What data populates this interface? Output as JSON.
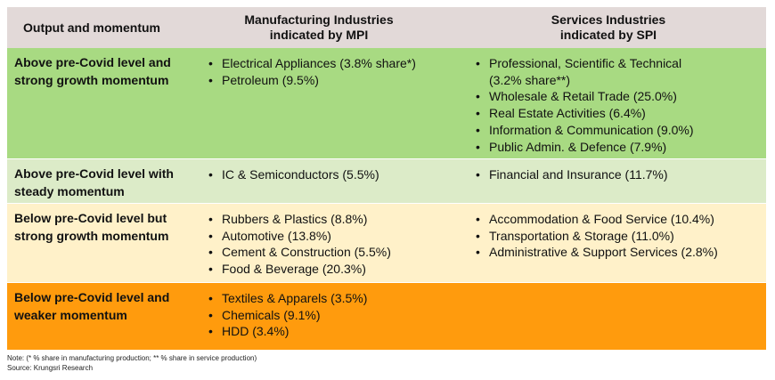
{
  "header": {
    "col1": "Output and momentum",
    "col2_line1": "Manufacturing Industries",
    "col2_line2": "indicated by MPI",
    "col3_line1": "Services Industries",
    "col3_line2": "indicated by SPI"
  },
  "rows": [
    {
      "label_line1": "Above pre-Covid level and",
      "label_line2": "strong growth momentum",
      "manufacturing": [
        "Electrical Appliances (3.8% share*)",
        "Petroleum (9.5%)"
      ],
      "services": [
        "Professional, Scientific & Technical",
        "Wholesale & Retail Trade (25.0%)",
        "Real Estate Activities (6.4%)",
        "Information & Communication (9.0%)",
        "Public Admin. & Defence (7.9%)"
      ],
      "services_first_cont": "(3.2% share**)",
      "color": "#a8da82"
    },
    {
      "label_line1": "Above pre-Covid level with",
      "label_line2": "steady momentum",
      "manufacturing": [
        "IC & Semiconductors (5.5%)"
      ],
      "services": [
        "Financial and Insurance (11.7%)"
      ],
      "color": "#dcebc8"
    },
    {
      "label_line1": "Below pre-Covid level but",
      "label_line2": "strong growth momentum",
      "manufacturing": [
        "Rubbers & Plastics (8.8%)",
        "Automotive (13.8%)",
        "Cement & Construction (5.5%)",
        "Food & Beverage (20.3%)"
      ],
      "services": [
        "Accommodation & Food Service (10.4%)",
        "Transportation & Storage (11.0%)",
        "Administrative & Support Services (2.8%)"
      ],
      "color": "#fff1c9"
    },
    {
      "label_line1": "Below pre-Covid level and",
      "label_line2": "weaker momentum",
      "manufacturing": [
        "Textiles & Apparels (3.5%)",
        "Chemicals (9.1%)",
        "HDD (3.4%)"
      ],
      "services": [],
      "color": "#ff9b0d"
    }
  ],
  "note": "Note: (* % share in manufacturing production; ** % share in service production)",
  "source": "Source: Krungsri Research"
}
